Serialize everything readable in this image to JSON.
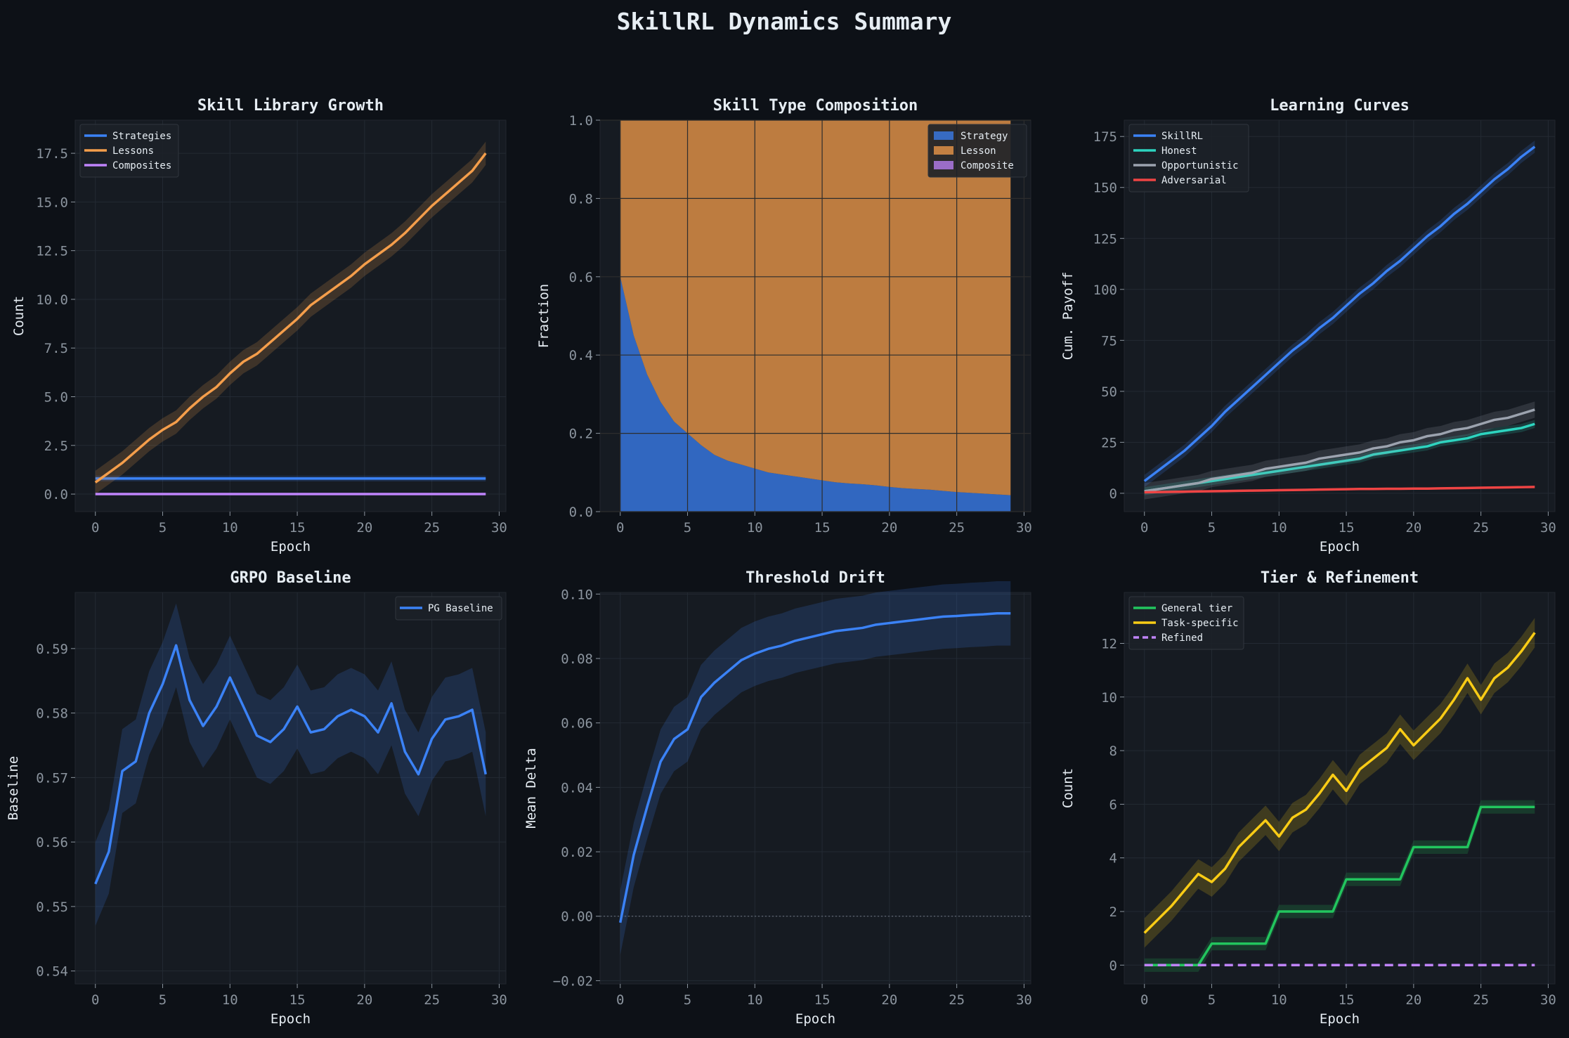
{
  "title": "SkillRL Dynamics Summary",
  "colors": {
    "background": "#0d1117",
    "panel": "#161b22",
    "strategies": "#3b82f6",
    "lessons": "#f59e4b",
    "composites": "#c084fc",
    "honest": "#2dd4bf",
    "opportunistic": "#9ca3af",
    "adversarial": "#ef4444",
    "general": "#22c55e",
    "task_specific": "#facc15"
  },
  "chart_data": [
    {
      "type": "line",
      "title": "Skill Library Growth",
      "xlabel": "Epoch",
      "ylabel": "Count",
      "xlim": [
        -1.5,
        30.5
      ],
      "ylim": [
        -0.9,
        19.2
      ],
      "xticks": [
        "0",
        "5",
        "10",
        "15",
        "20",
        "25",
        "30"
      ],
      "yticks": [
        "0.0",
        "2.5",
        "5.0",
        "7.5",
        "10.0",
        "12.5",
        "15.0",
        "17.5"
      ],
      "legend": "top-left",
      "grid": true,
      "x": [
        0,
        1,
        2,
        3,
        4,
        5,
        6,
        7,
        8,
        9,
        10,
        11,
        12,
        13,
        14,
        15,
        16,
        17,
        18,
        19,
        20,
        21,
        22,
        23,
        24,
        25,
        26,
        27,
        28,
        29
      ],
      "series": [
        {
          "name": "Strategies",
          "color": "#3b82f6",
          "values": [
            0.8,
            0.8,
            0.8,
            0.8,
            0.8,
            0.8,
            0.8,
            0.8,
            0.8,
            0.8,
            0.8,
            0.8,
            0.8,
            0.8,
            0.8,
            0.8,
            0.8,
            0.8,
            0.8,
            0.8,
            0.8,
            0.8,
            0.8,
            0.8,
            0.8,
            0.8,
            0.8,
            0.8,
            0.8,
            0.8
          ],
          "band": 0.15
        },
        {
          "name": "Lessons",
          "color": "#f59e4b",
          "values": [
            0.6,
            1.1,
            1.6,
            2.2,
            2.8,
            3.3,
            3.7,
            4.4,
            5.0,
            5.5,
            6.2,
            6.8,
            7.2,
            7.8,
            8.4,
            9.0,
            9.7,
            10.2,
            10.7,
            11.2,
            11.8,
            12.3,
            12.8,
            13.4,
            14.1,
            14.8,
            15.4,
            16.0,
            16.6,
            17.5
          ],
          "band": 0.6
        },
        {
          "name": "Composites",
          "color": "#c084fc",
          "values": [
            0,
            0,
            0,
            0,
            0,
            0,
            0,
            0,
            0,
            0,
            0,
            0,
            0,
            0,
            0,
            0,
            0,
            0,
            0,
            0,
            0,
            0,
            0,
            0,
            0,
            0,
            0,
            0,
            0,
            0
          ],
          "band": 0
        }
      ]
    },
    {
      "type": "area",
      "title": "Skill Type Composition",
      "xlabel": "",
      "ylabel": "Fraction",
      "xlim": [
        -1.5,
        30.5
      ],
      "ylim": [
        0,
        1
      ],
      "xticks": [
        "0",
        "5",
        "10",
        "15",
        "20",
        "25",
        "30"
      ],
      "yticks": [
        "0.0",
        "0.2",
        "0.4",
        "0.6",
        "0.8",
        "1.0"
      ],
      "legend": "top-right",
      "grid": true,
      "x": [
        0,
        1,
        2,
        3,
        4,
        5,
        6,
        7,
        8,
        9,
        10,
        11,
        12,
        13,
        14,
        15,
        16,
        17,
        18,
        19,
        20,
        21,
        22,
        23,
        24,
        25,
        26,
        27,
        28,
        29
      ],
      "series": [
        {
          "name": "Strategy",
          "color": "#3b82f6",
          "values": [
            0.6,
            0.45,
            0.35,
            0.28,
            0.23,
            0.2,
            0.17,
            0.145,
            0.13,
            0.12,
            0.11,
            0.1,
            0.095,
            0.09,
            0.085,
            0.08,
            0.075,
            0.072,
            0.07,
            0.067,
            0.063,
            0.06,
            0.058,
            0.056,
            0.053,
            0.05,
            0.048,
            0.046,
            0.044,
            0.042
          ]
        },
        {
          "name": "Lesson",
          "color": "#f59e4b",
          "values": [
            0.4,
            0.55,
            0.65,
            0.72,
            0.77,
            0.8,
            0.83,
            0.855,
            0.87,
            0.88,
            0.89,
            0.9,
            0.905,
            0.91,
            0.915,
            0.92,
            0.925,
            0.928,
            0.93,
            0.933,
            0.937,
            0.94,
            0.942,
            0.944,
            0.947,
            0.95,
            0.952,
            0.954,
            0.956,
            0.958
          ]
        },
        {
          "name": "Composite",
          "color": "#c084fc",
          "values": [
            0,
            0,
            0,
            0,
            0,
            0,
            0,
            0,
            0,
            0,
            0,
            0,
            0,
            0,
            0,
            0,
            0,
            0,
            0,
            0,
            0,
            0,
            0,
            0,
            0,
            0,
            0,
            0,
            0,
            0
          ]
        }
      ]
    },
    {
      "type": "line",
      "title": "Learning Curves",
      "xlabel": "Epoch",
      "ylabel": "Cum. Payoff",
      "xlim": [
        -1.5,
        30.5
      ],
      "ylim": [
        -9,
        183
      ],
      "xticks": [
        "0",
        "5",
        "10",
        "15",
        "20",
        "25",
        "30"
      ],
      "yticks": [
        "0",
        "25",
        "50",
        "75",
        "100",
        "125",
        "150",
        "175"
      ],
      "legend": "top-left",
      "grid": true,
      "x": [
        0,
        1,
        2,
        3,
        4,
        5,
        6,
        7,
        8,
        9,
        10,
        11,
        12,
        13,
        14,
        15,
        16,
        17,
        18,
        19,
        20,
        21,
        22,
        23,
        24,
        25,
        26,
        27,
        28,
        29
      ],
      "series": [
        {
          "name": "SkillRL",
          "color": "#3b82f6",
          "values": [
            6,
            11,
            16,
            21,
            27,
            33,
            40,
            46,
            52,
            58,
            64,
            70,
            75,
            81,
            86,
            92,
            98,
            103,
            109,
            114,
            120,
            126,
            131,
            137,
            142,
            148,
            154,
            159,
            165,
            170
          ],
          "band": 3
        },
        {
          "name": "Honest",
          "color": "#2dd4bf",
          "values": [
            1,
            2,
            3,
            4,
            5,
            6,
            7,
            8,
            9,
            10,
            11,
            12,
            13,
            14,
            15,
            16,
            17,
            19,
            20,
            21,
            22,
            23,
            25,
            26,
            27,
            29,
            30,
            31,
            32,
            34
          ],
          "band": 2
        },
        {
          "name": "Opportunistic",
          "color": "#9ca3af",
          "values": [
            1,
            2,
            3,
            4,
            5,
            7,
            8,
            9,
            10,
            12,
            13,
            14,
            15,
            17,
            18,
            19,
            20,
            22,
            23,
            25,
            26,
            28,
            29,
            31,
            32,
            34,
            36,
            37,
            39,
            41
          ],
          "band": 4
        },
        {
          "name": "Adversarial",
          "color": "#ef4444",
          "values": [
            0.5,
            0.6,
            0.7,
            0.8,
            0.9,
            1.0,
            1.1,
            1.2,
            1.3,
            1.4,
            1.5,
            1.6,
            1.7,
            1.8,
            1.9,
            2.0,
            2.1,
            2.1,
            2.2,
            2.2,
            2.3,
            2.3,
            2.4,
            2.5,
            2.6,
            2.7,
            2.8,
            2.9,
            3.0,
            3.1
          ],
          "band": 0.5
        }
      ]
    },
    {
      "type": "line",
      "title": "GRPO Baseline",
      "xlabel": "Epoch",
      "ylabel": "Baseline",
      "xlim": [
        -1.5,
        30.5
      ],
      "ylim": [
        0.538,
        0.5987
      ],
      "xticks": [
        "0",
        "5",
        "10",
        "15",
        "20",
        "25",
        "30"
      ],
      "yticks": [
        "0.54",
        "0.55",
        "0.56",
        "0.57",
        "0.58",
        "0.59"
      ],
      "legend": "top-right",
      "grid": true,
      "x": [
        0,
        1,
        2,
        3,
        4,
        5,
        6,
        7,
        8,
        9,
        10,
        11,
        12,
        13,
        14,
        15,
        16,
        17,
        18,
        19,
        20,
        21,
        22,
        23,
        24,
        25,
        26,
        27,
        28,
        29
      ],
      "series": [
        {
          "name": "PG Baseline",
          "color": "#3b82f6",
          "values": [
            0.5535,
            0.5585,
            0.571,
            0.5725,
            0.58,
            0.5845,
            0.5905,
            0.582,
            0.578,
            0.581,
            0.5855,
            0.581,
            0.5765,
            0.5755,
            0.5775,
            0.581,
            0.577,
            0.5775,
            0.5795,
            0.5805,
            0.5795,
            0.577,
            0.5815,
            0.574,
            0.5705,
            0.576,
            0.579,
            0.5795,
            0.5805,
            0.5705
          ],
          "band": 0.0065
        }
      ]
    },
    {
      "type": "line",
      "title": "Threshold Drift",
      "xlabel": "Epoch",
      "ylabel": "Mean Delta",
      "xlim": [
        -1.5,
        30.5
      ],
      "ylim": [
        -0.021,
        0.1005
      ],
      "xticks": [
        "0",
        "5",
        "10",
        "15",
        "20",
        "25",
        "30"
      ],
      "yticks": [
        "−0.02",
        "0.00",
        "0.02",
        "0.04",
        "0.06",
        "0.08",
        "0.10"
      ],
      "legend": "",
      "grid": true,
      "zero_line": true,
      "x": [
        0,
        1,
        2,
        3,
        4,
        5,
        6,
        7,
        8,
        9,
        10,
        11,
        12,
        13,
        14,
        15,
        16,
        17,
        18,
        19,
        20,
        21,
        22,
        23,
        24,
        25,
        26,
        27,
        28,
        29
      ],
      "series": [
        {
          "name": "",
          "color": "#3b82f6",
          "values": [
            -0.002,
            0.019,
            0.034,
            0.048,
            0.055,
            0.058,
            0.068,
            0.0725,
            0.076,
            0.0795,
            0.0815,
            0.083,
            0.084,
            0.0855,
            0.0865,
            0.0875,
            0.0885,
            0.089,
            0.0895,
            0.0905,
            0.091,
            0.0915,
            0.092,
            0.0925,
            0.093,
            0.0932,
            0.0935,
            0.0937,
            0.094,
            0.094
          ],
          "band": 0.01
        }
      ]
    },
    {
      "type": "line",
      "title": "Tier & Refinement",
      "xlabel": "Epoch",
      "ylabel": "Count",
      "xlim": [
        -1.5,
        30.5
      ],
      "ylim": [
        -0.7,
        13.9
      ],
      "xticks": [
        "0",
        "5",
        "10",
        "15",
        "20",
        "25",
        "30"
      ],
      "yticks": [
        "0",
        "2",
        "4",
        "6",
        "8",
        "10",
        "12"
      ],
      "legend": "top-left",
      "grid": true,
      "x": [
        0,
        1,
        2,
        3,
        4,
        5,
        6,
        7,
        8,
        9,
        10,
        11,
        12,
        13,
        14,
        15,
        16,
        17,
        18,
        19,
        20,
        21,
        22,
        23,
        24,
        25,
        26,
        27,
        28,
        29
      ],
      "series": [
        {
          "name": "General tier",
          "color": "#22c55e",
          "values": [
            0,
            0,
            0,
            0,
            0,
            0.8,
            0.8,
            0.8,
            0.8,
            0.8,
            2.0,
            2.0,
            2.0,
            2.0,
            2.0,
            3.2,
            3.2,
            3.2,
            3.2,
            3.2,
            4.4,
            4.4,
            4.4,
            4.4,
            4.4,
            5.9,
            5.9,
            5.9,
            5.9,
            5.9
          ],
          "band": 0.25
        },
        {
          "name": "Task-specific",
          "color": "#facc15",
          "values": [
            1.2,
            1.7,
            2.2,
            2.8,
            3.4,
            3.1,
            3.6,
            4.4,
            4.9,
            5.4,
            4.8,
            5.5,
            5.8,
            6.4,
            7.1,
            6.5,
            7.3,
            7.7,
            8.1,
            8.8,
            8.2,
            8.7,
            9.2,
            9.9,
            10.7,
            9.9,
            10.7,
            11.1,
            11.7,
            12.4
          ],
          "band": 0.55
        },
        {
          "name": "Refined",
          "color": "#c084fc",
          "values": [
            0,
            0,
            0,
            0,
            0,
            0,
            0,
            0,
            0,
            0,
            0,
            0,
            0,
            0,
            0,
            0,
            0,
            0,
            0,
            0,
            0,
            0,
            0,
            0,
            0,
            0,
            0,
            0,
            0,
            0
          ],
          "band": 0,
          "dashed": true
        }
      ]
    }
  ]
}
